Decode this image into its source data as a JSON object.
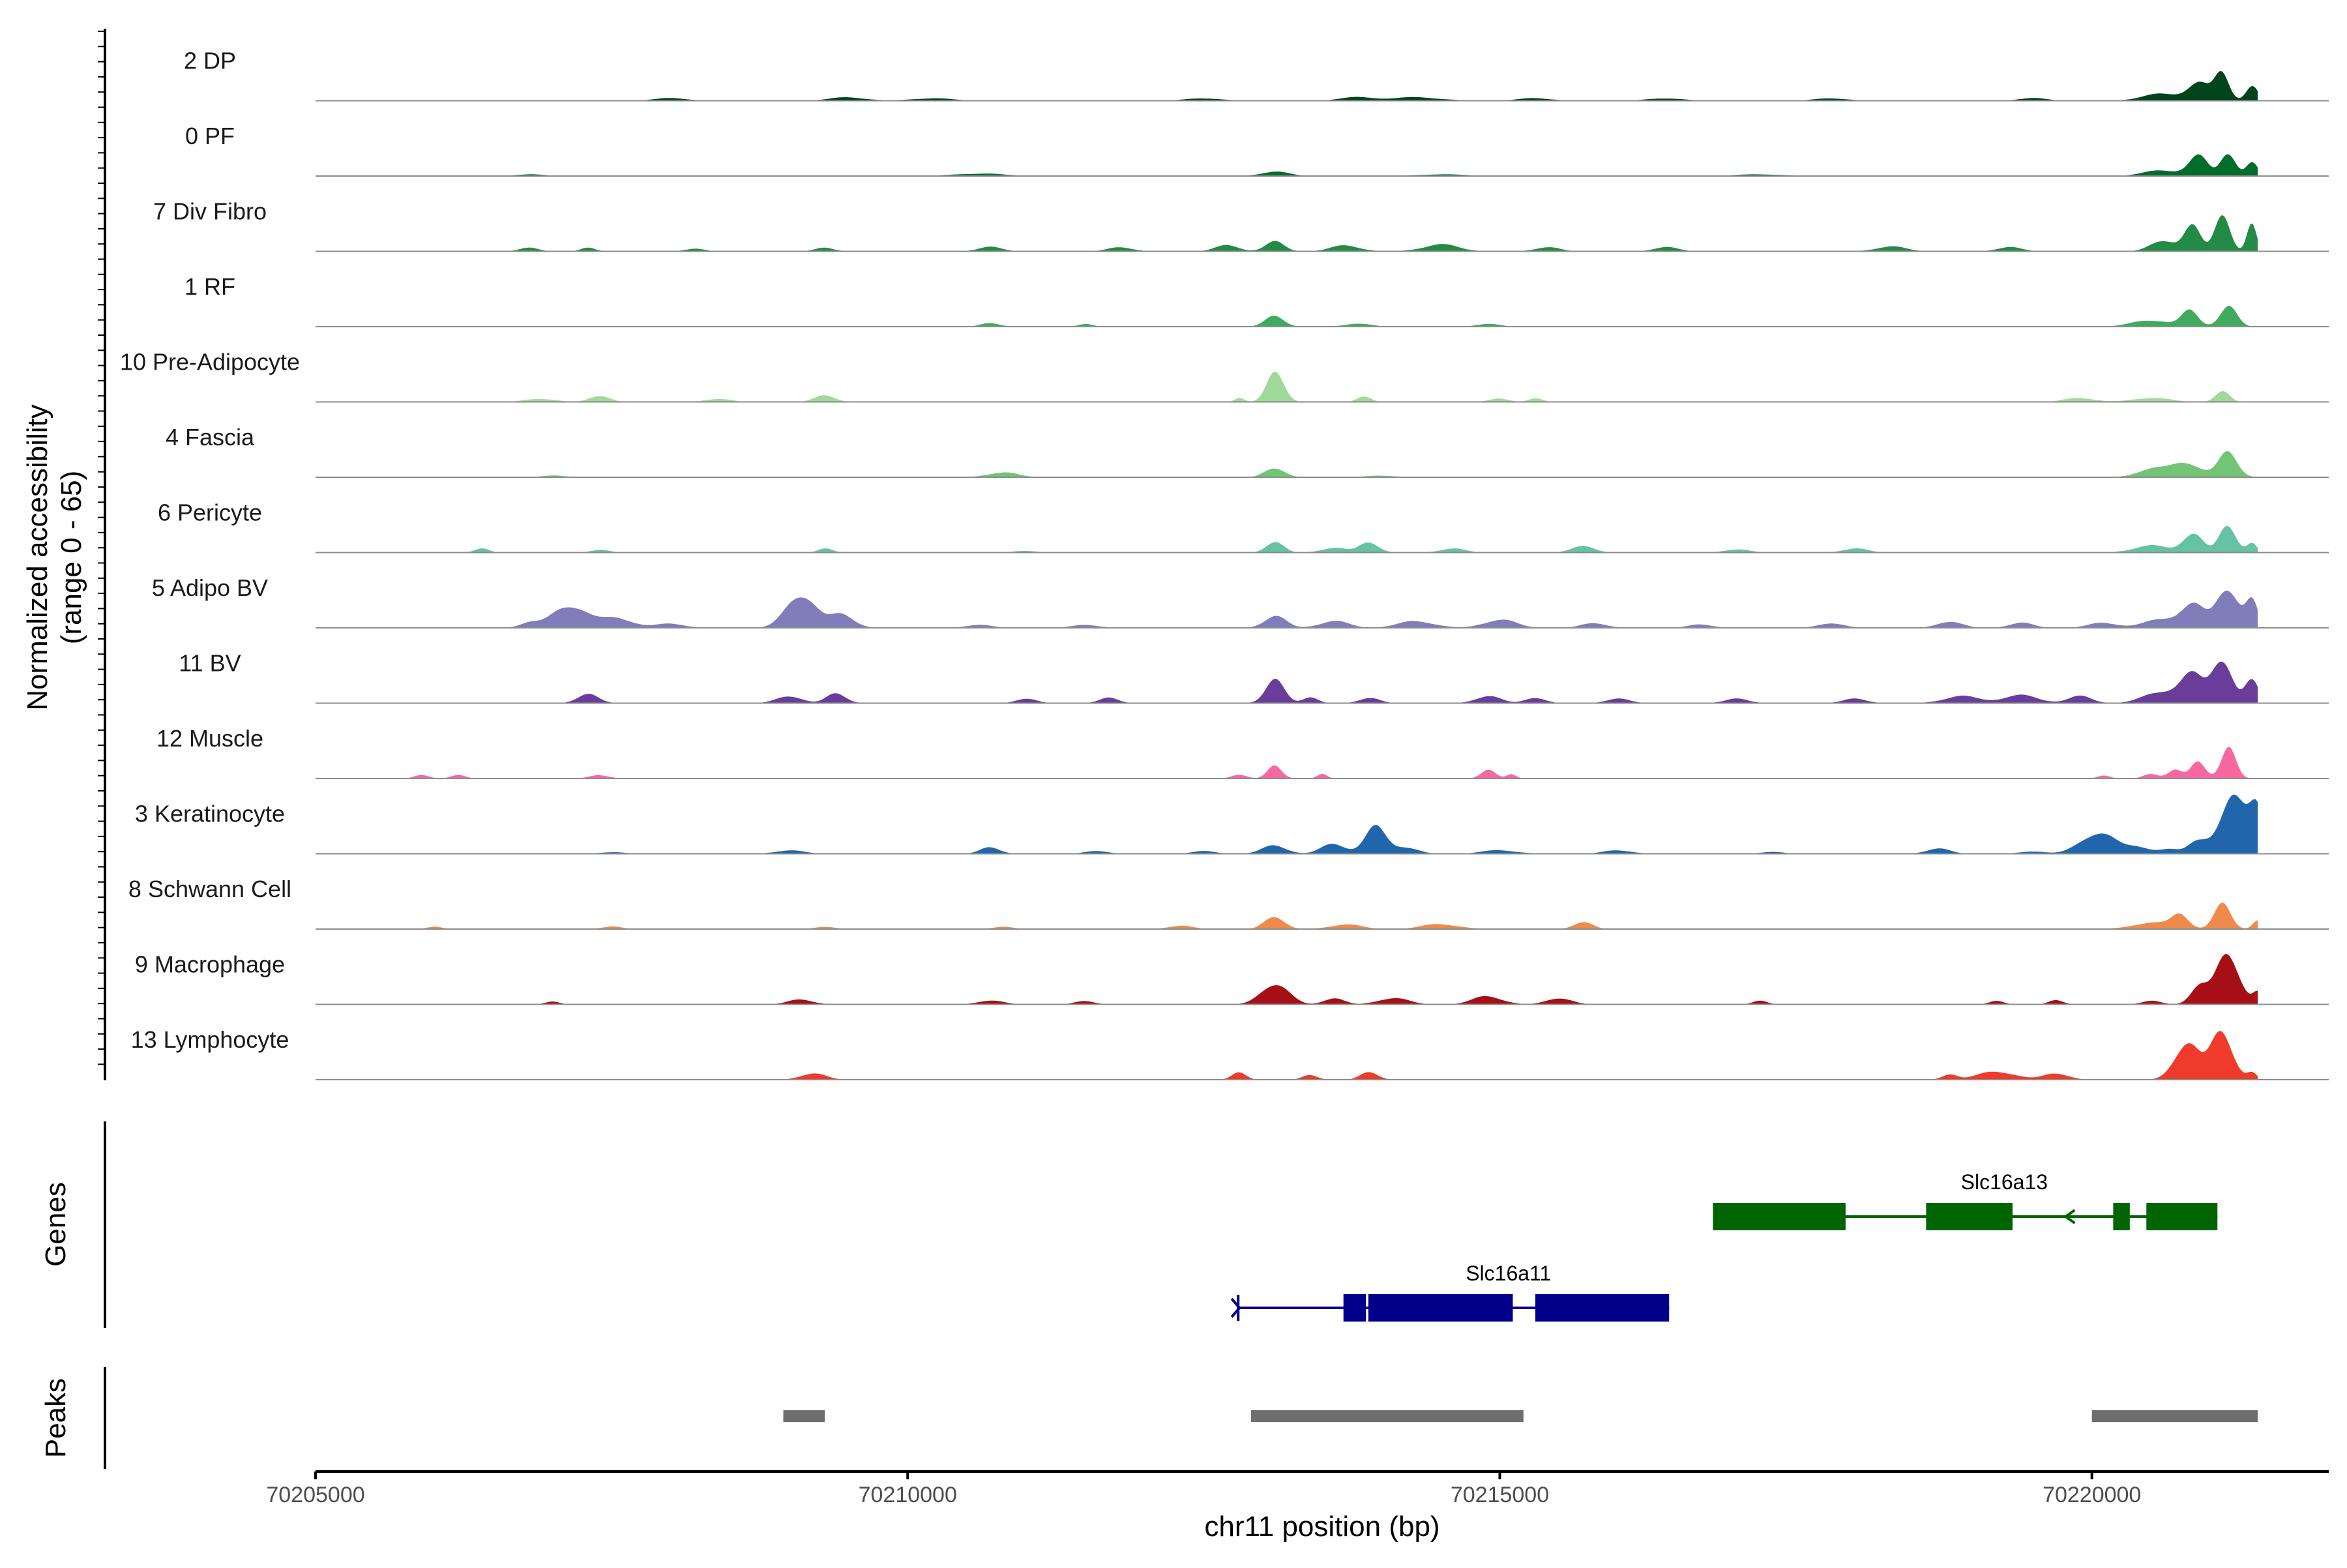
{
  "chart_data": {
    "type": "area",
    "title": "",
    "ylabel_line1": "Normalized accessibility",
    "ylabel_line2": "(range 0 - 65)",
    "xlabel": "chr11 position (bp)",
    "y_range": [
      0,
      65
    ],
    "xlim": [
      70205000,
      70222000
    ],
    "x_ticks": [
      70205000,
      70210000,
      70215000,
      70220000
    ],
    "x_tick_labels": [
      "70205000",
      "70210000",
      "70215000",
      "70220000"
    ],
    "tracks": [
      {
        "name": "2 DP",
        "color": "#00441B",
        "profile": [
          [
            70208000,
            3,
            140
          ],
          [
            70209500,
            4,
            150
          ],
          [
            70210200,
            3,
            160
          ],
          [
            70212500,
            3,
            140
          ],
          [
            70213800,
            4,
            150
          ],
          [
            70214300,
            4,
            200
          ],
          [
            70215300,
            3,
            140
          ],
          [
            70216400,
            3,
            140
          ],
          [
            70217800,
            3,
            130
          ],
          [
            70219500,
            3,
            120
          ],
          [
            70220600,
            8,
            170
          ],
          [
            70220900,
            20,
            90
          ],
          [
            70221100,
            32,
            60
          ],
          [
            70221350,
            18,
            50
          ]
        ]
      },
      {
        "name": "0 PF",
        "color": "#006D2C",
        "profile": [
          [
            70206800,
            2,
            120
          ],
          [
            70210600,
            3,
            200
          ],
          [
            70213100,
            5,
            120
          ],
          [
            70214500,
            2,
            200
          ],
          [
            70217200,
            2,
            200
          ],
          [
            70220600,
            7,
            150
          ],
          [
            70220900,
            22,
            80
          ],
          [
            70221150,
            30,
            60
          ],
          [
            70221350,
            15,
            50
          ]
        ]
      },
      {
        "name": "7 Div Fibro",
        "color": "#238B45",
        "profile": [
          [
            70206800,
            4,
            80
          ],
          [
            70207300,
            4,
            60
          ],
          [
            70208200,
            3,
            80
          ],
          [
            70209300,
            4,
            80
          ],
          [
            70210700,
            5,
            100
          ],
          [
            70211800,
            5,
            100
          ],
          [
            70212700,
            7,
            100
          ],
          [
            70213100,
            11,
            80
          ],
          [
            70213700,
            7,
            120
          ],
          [
            70214500,
            8,
            150
          ],
          [
            70215400,
            5,
            100
          ],
          [
            70216400,
            5,
            100
          ],
          [
            70218300,
            6,
            120
          ],
          [
            70219300,
            5,
            100
          ],
          [
            70220600,
            14,
            100
          ],
          [
            70220850,
            28,
            70
          ],
          [
            70221100,
            50,
            60
          ],
          [
            70221350,
            30,
            40
          ]
        ]
      },
      {
        "name": "1 RF",
        "color": "#41AB5D",
        "profile": [
          [
            70210700,
            4,
            80
          ],
          [
            70211500,
            3,
            60
          ],
          [
            70213100,
            12,
            80
          ],
          [
            70213800,
            4,
            100
          ],
          [
            70214900,
            3,
            100
          ],
          [
            70220500,
            8,
            150
          ],
          [
            70220830,
            18,
            70
          ],
          [
            70221150,
            24,
            70
          ]
        ]
      },
      {
        "name": "10 Pre-Adipocyte",
        "color": "#A1D99B",
        "profile": [
          [
            70206900,
            4,
            120
          ],
          [
            70207400,
            8,
            80
          ],
          [
            70208400,
            4,
            100
          ],
          [
            70209300,
            9,
            80
          ],
          [
            70212800,
            5,
            40
          ],
          [
            70213110,
            38,
            70
          ],
          [
            70213850,
            6,
            60
          ],
          [
            70215000,
            4,
            80
          ],
          [
            70215300,
            4,
            60
          ],
          [
            70219900,
            5,
            120
          ],
          [
            70220500,
            5,
            150
          ],
          [
            70221100,
            12,
            60
          ]
        ]
      },
      {
        "name": "4 Fascia",
        "color": "#74C476",
        "profile": [
          [
            70207000,
            2,
            100
          ],
          [
            70210800,
            6,
            120
          ],
          [
            70213100,
            12,
            80
          ],
          [
            70214000,
            2,
            120
          ],
          [
            70220500,
            10,
            120
          ],
          [
            70220800,
            18,
            120
          ],
          [
            70221150,
            28,
            80
          ]
        ]
      },
      {
        "name": "6 Pericyte",
        "color": "#66C2A4",
        "profile": [
          [
            70206400,
            5,
            60
          ],
          [
            70207400,
            3,
            80
          ],
          [
            70209300,
            5,
            60
          ],
          [
            70211000,
            2,
            100
          ],
          [
            70213100,
            14,
            70
          ],
          [
            70213600,
            6,
            100
          ],
          [
            70213900,
            12,
            80
          ],
          [
            70214600,
            5,
            100
          ],
          [
            70215700,
            7,
            100
          ],
          [
            70217000,
            4,
            100
          ],
          [
            70218000,
            5,
            100
          ],
          [
            70220500,
            8,
            150
          ],
          [
            70220850,
            24,
            80
          ],
          [
            70221150,
            32,
            70
          ],
          [
            70221350,
            12,
            40
          ]
        ]
      },
      {
        "name": "5 Adipo BV",
        "color": "#807DBA",
        "profile": [
          [
            70206800,
            6,
            80
          ],
          [
            70207150,
            28,
            140
          ],
          [
            70207550,
            12,
            130
          ],
          [
            70208000,
            5,
            120
          ],
          [
            70209100,
            42,
            120
          ],
          [
            70209450,
            16,
            100
          ],
          [
            70210600,
            4,
            100
          ],
          [
            70211500,
            4,
            100
          ],
          [
            70213100,
            14,
            90
          ],
          [
            70213600,
            8,
            120
          ],
          [
            70214300,
            8,
            150
          ],
          [
            70215000,
            10,
            130
          ],
          [
            70215800,
            6,
            100
          ],
          [
            70216700,
            4,
            100
          ],
          [
            70217800,
            6,
            100
          ],
          [
            70218800,
            8,
            100
          ],
          [
            70219400,
            6,
            100
          ],
          [
            70220100,
            6,
            120
          ],
          [
            70220600,
            10,
            150
          ],
          [
            70220850,
            26,
            100
          ],
          [
            70221150,
            50,
            90
          ],
          [
            70221350,
            30,
            50
          ]
        ]
      },
      {
        "name": "11 BV",
        "color": "#6A3D9A",
        "profile": [
          [
            70207300,
            10,
            90
          ],
          [
            70209000,
            9,
            100
          ],
          [
            70209400,
            12,
            80
          ],
          [
            70211000,
            6,
            80
          ],
          [
            70211700,
            6,
            80
          ],
          [
            70213100,
            26,
            80
          ],
          [
            70213400,
            8,
            60
          ],
          [
            70213900,
            7,
            80
          ],
          [
            70214900,
            9,
            100
          ],
          [
            70215300,
            7,
            80
          ],
          [
            70216000,
            5,
            100
          ],
          [
            70217000,
            5,
            100
          ],
          [
            70218000,
            5,
            100
          ],
          [
            70218900,
            8,
            150
          ],
          [
            70219400,
            9,
            150
          ],
          [
            70219900,
            8,
            100
          ],
          [
            70220600,
            14,
            150
          ],
          [
            70220850,
            30,
            100
          ],
          [
            70221100,
            56,
            80
          ],
          [
            70221350,
            25,
            60
          ]
        ]
      },
      {
        "name": "12 Muscle",
        "color": "#F768A1",
        "profile": [
          [
            70205900,
            4,
            60
          ],
          [
            70206200,
            4,
            60
          ],
          [
            70207400,
            4,
            80
          ],
          [
            70212800,
            5,
            60
          ],
          [
            70213100,
            14,
            60
          ],
          [
            70213500,
            5,
            40
          ],
          [
            70214900,
            10,
            60
          ],
          [
            70215100,
            5,
            40
          ],
          [
            70220100,
            4,
            50
          ],
          [
            70220500,
            6,
            60
          ],
          [
            70220700,
            10,
            60
          ],
          [
            70220900,
            20,
            60
          ],
          [
            70221150,
            38,
            60
          ]
        ]
      },
      {
        "name": "3 Keratinocyte",
        "color": "#2166AC",
        "profile": [
          [
            70207500,
            2,
            100
          ],
          [
            70209000,
            4,
            120
          ],
          [
            70210700,
            8,
            80
          ],
          [
            70211600,
            3,
            100
          ],
          [
            70212500,
            3,
            100
          ],
          [
            70213100,
            10,
            100
          ],
          [
            70213600,
            12,
            100
          ],
          [
            70213950,
            30,
            90
          ],
          [
            70214200,
            8,
            100
          ],
          [
            70215000,
            4,
            150
          ],
          [
            70216000,
            4,
            120
          ],
          [
            70217300,
            2,
            100
          ],
          [
            70218700,
            6,
            100
          ],
          [
            70219500,
            3,
            100
          ],
          [
            70220050,
            26,
            140
          ],
          [
            70220400,
            8,
            100
          ],
          [
            70220650,
            5,
            80
          ],
          [
            70220900,
            16,
            80
          ],
          [
            70221200,
            62,
            120
          ],
          [
            70221400,
            55,
            60
          ]
        ]
      },
      {
        "name": "8 Schwann Cell",
        "color": "#F08A4B",
        "profile": [
          [
            70206000,
            3,
            60
          ],
          [
            70207500,
            3,
            80
          ],
          [
            70209300,
            3,
            80
          ],
          [
            70210800,
            3,
            80
          ],
          [
            70212300,
            4,
            100
          ],
          [
            70213100,
            16,
            80
          ],
          [
            70213700,
            6,
            120
          ],
          [
            70214500,
            6,
            150
          ],
          [
            70215700,
            8,
            80
          ],
          [
            70220500,
            8,
            150
          ],
          [
            70220750,
            16,
            70
          ],
          [
            70221100,
            28,
            70
          ],
          [
            70221400,
            12,
            40
          ]
        ]
      },
      {
        "name": "9 Macrophage",
        "color": "#A50F15",
        "profile": [
          [
            70207000,
            3,
            60
          ],
          [
            70209100,
            6,
            100
          ],
          [
            70210700,
            5,
            100
          ],
          [
            70211500,
            4,
            80
          ],
          [
            70213100,
            26,
            110
          ],
          [
            70213600,
            8,
            80
          ],
          [
            70214100,
            8,
            120
          ],
          [
            70214900,
            10,
            120
          ],
          [
            70215500,
            8,
            100
          ],
          [
            70217200,
            4,
            60
          ],
          [
            70219200,
            4,
            60
          ],
          [
            70219700,
            5,
            60
          ],
          [
            70220500,
            4,
            80
          ],
          [
            70220900,
            22,
            70
          ],
          [
            70221150,
            58,
            100
          ],
          [
            70221400,
            14,
            40
          ]
        ]
      },
      {
        "name": "13 Lymphocyte",
        "color": "#EF3B2C",
        "profile": [
          [
            70209200,
            8,
            100
          ],
          [
            70212800,
            8,
            60
          ],
          [
            70213400,
            6,
            60
          ],
          [
            70213900,
            10,
            70
          ],
          [
            70218800,
            7,
            60
          ],
          [
            70219200,
            10,
            150
          ],
          [
            70219700,
            8,
            100
          ],
          [
            70220800,
            46,
            100
          ],
          [
            70221100,
            58,
            90
          ],
          [
            70221350,
            8,
            40
          ]
        ]
      }
    ],
    "genes": [
      {
        "name": "Slc16a13",
        "strand": "-",
        "color": "#006400",
        "start": 70216800,
        "end": 70221060,
        "exons": [
          [
            70216800,
            70217920
          ],
          [
            70218600,
            70219330
          ],
          [
            70220180,
            70220320
          ],
          [
            70220460,
            70221060
          ]
        ]
      },
      {
        "name": "Slc16a11",
        "strand": "+",
        "color": "#00008B",
        "start": 70212780,
        "end": 70216430,
        "exons": [
          [
            70213680,
            70213870
          ],
          [
            70213890,
            70215110
          ],
          [
            70215300,
            70216430
          ]
        ]
      }
    ],
    "peaks": [
      [
        70208950,
        70209300
      ],
      [
        70212900,
        70215200
      ],
      [
        70220000,
        70221400
      ]
    ],
    "panels": {
      "genes": "Genes",
      "peaks": "Peaks"
    }
  }
}
